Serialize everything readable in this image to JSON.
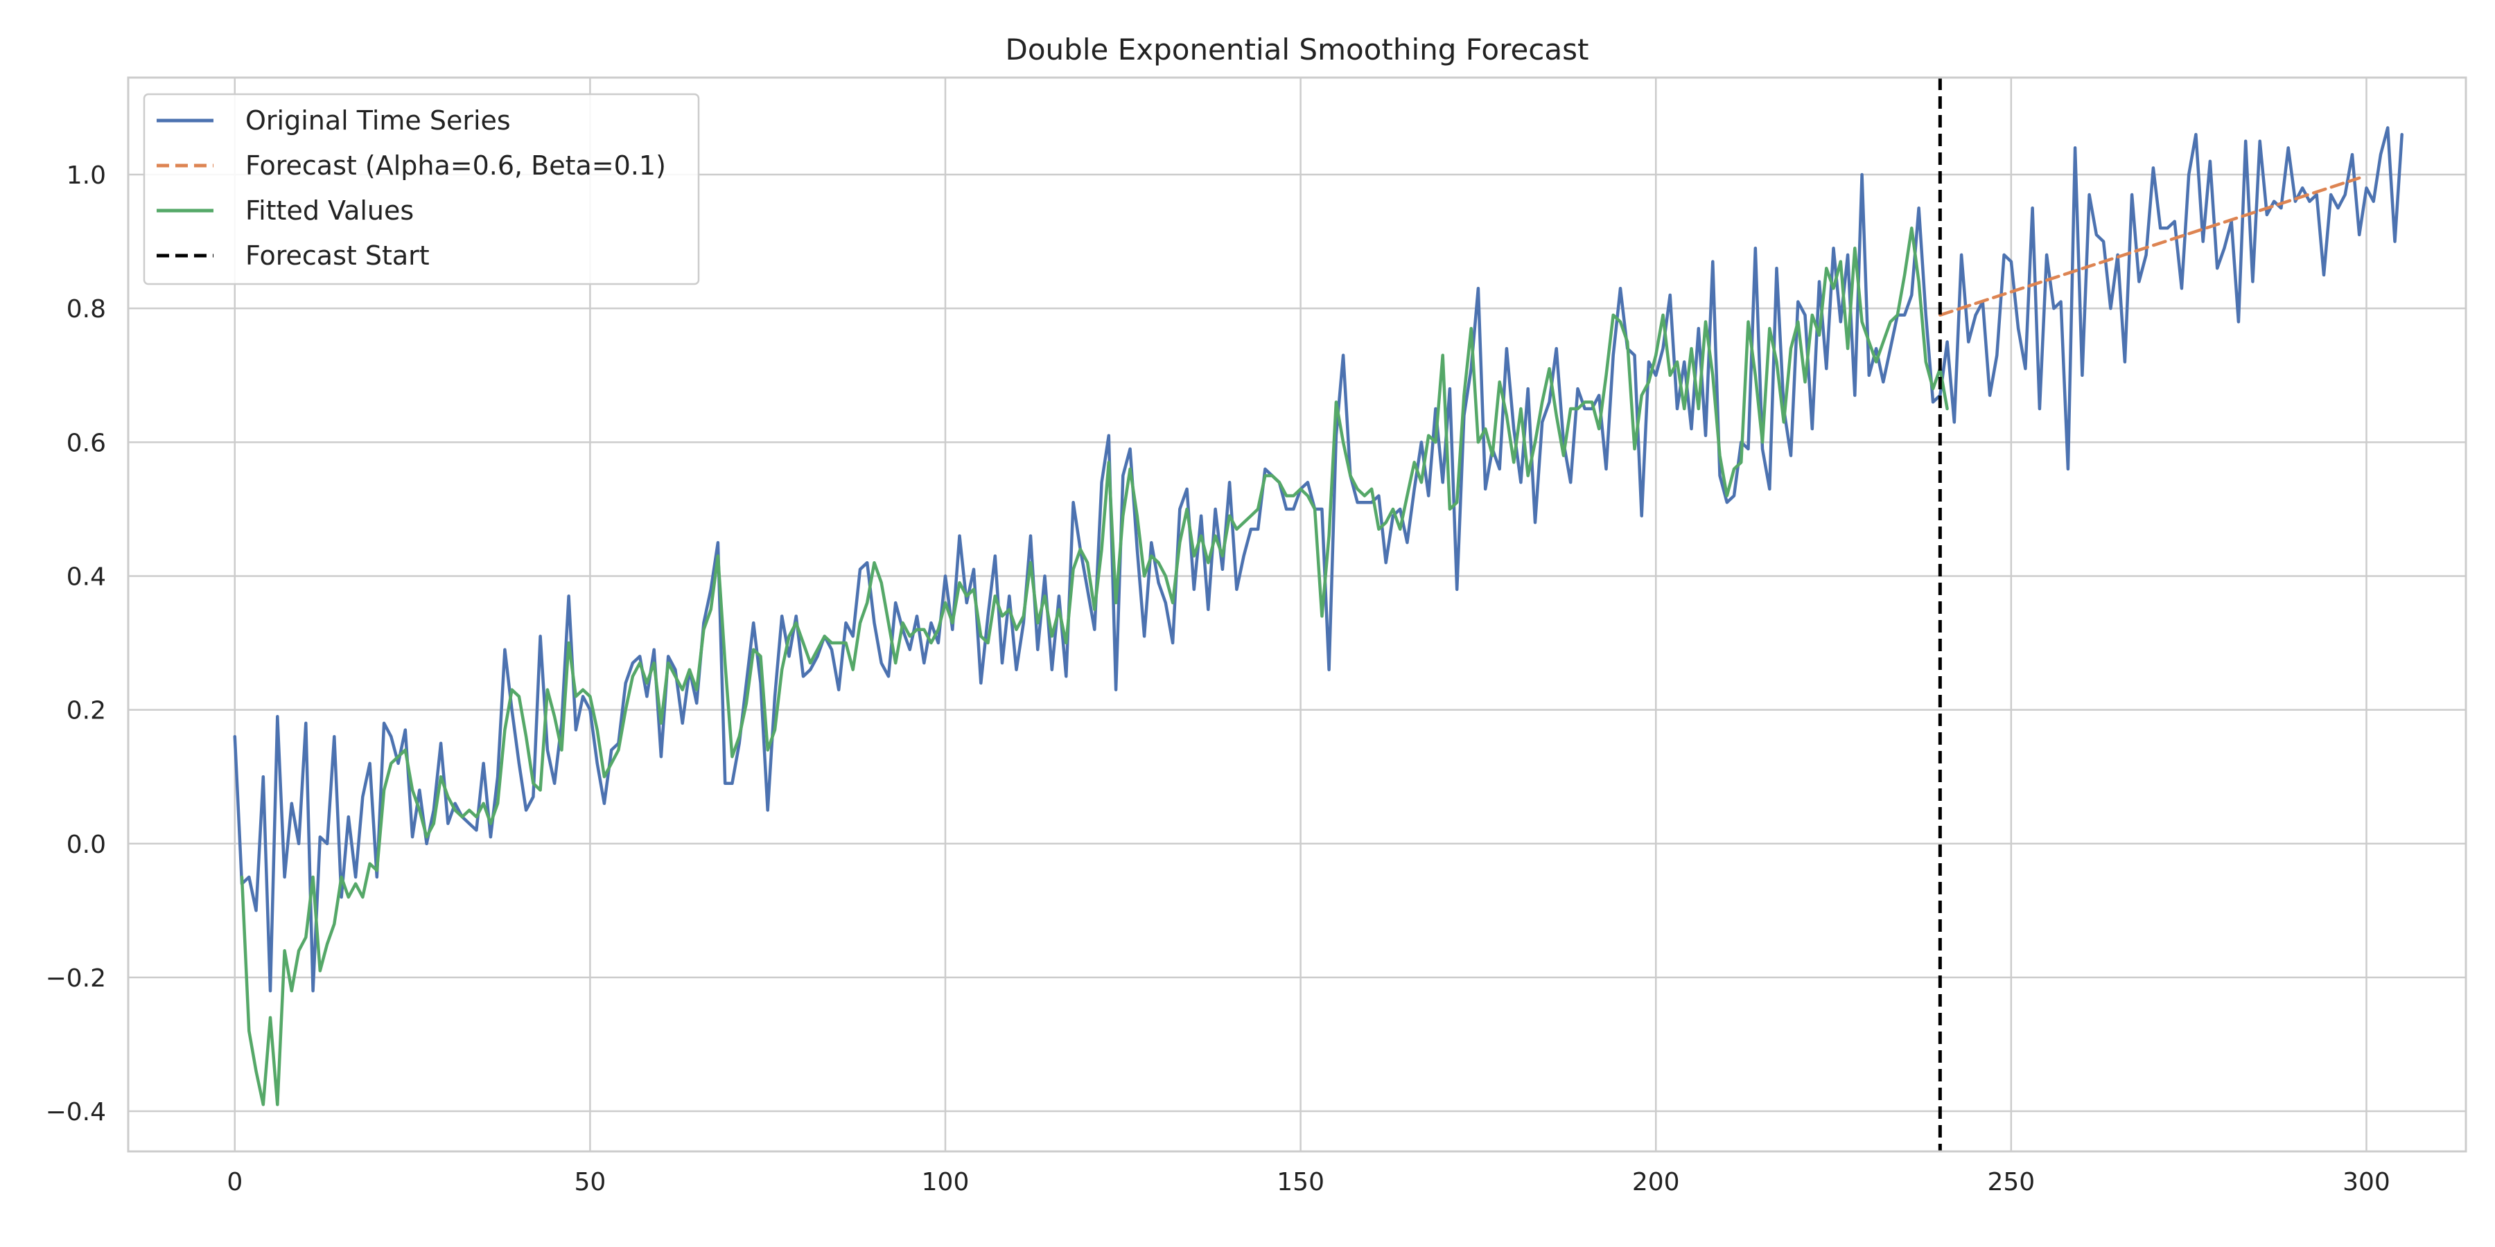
{
  "chart_data": {
    "type": "line",
    "title": "Double Exponential Smoothing Forecast",
    "xlabel": "",
    "ylabel": "",
    "xlim": [
      -15,
      314
    ],
    "ylim": [
      -0.46,
      1.145
    ],
    "grid": true,
    "legend_position": "top-left",
    "x_ticks": [
      0,
      50,
      100,
      150,
      200,
      250,
      300
    ],
    "y_ticks": [
      -0.4,
      -0.2,
      0.0,
      0.2,
      0.4,
      0.6,
      0.8,
      1.0
    ],
    "x_tick_labels": [
      "0",
      "50",
      "100",
      "150",
      "200",
      "250",
      "300"
    ],
    "y_tick_labels": [
      "−0.4",
      "−0.2",
      "0.0",
      "0.2",
      "0.4",
      "0.6",
      "0.8",
      "1.0"
    ],
    "forecast_start": 240,
    "series": [
      {
        "name": "Original Time Series",
        "color": "#4c72b0",
        "style": "solid",
        "x_start": 0,
        "values": [
          0.16,
          -0.06,
          -0.05,
          -0.1,
          0.1,
          -0.22,
          0.19,
          -0.05,
          0.06,
          0.0,
          0.18,
          -0.22,
          0.01,
          0.0,
          0.16,
          -0.08,
          0.04,
          -0.05,
          0.07,
          0.12,
          -0.05,
          0.18,
          0.16,
          0.12,
          0.17,
          0.01,
          0.08,
          0.0,
          0.05,
          0.15,
          0.03,
          0.06,
          0.04,
          0.03,
          0.02,
          0.12,
          0.01,
          0.1,
          0.29,
          0.2,
          0.12,
          0.05,
          0.07,
          0.31,
          0.14,
          0.09,
          0.18,
          0.37,
          0.17,
          0.22,
          0.2,
          0.12,
          0.06,
          0.14,
          0.15,
          0.24,
          0.27,
          0.28,
          0.22,
          0.29,
          0.13,
          0.28,
          0.26,
          0.18,
          0.26,
          0.21,
          0.33,
          0.38,
          0.45,
          0.09,
          0.09,
          0.15,
          0.24,
          0.33,
          0.24,
          0.05,
          0.22,
          0.34,
          0.28,
          0.34,
          0.25,
          0.26,
          0.28,
          0.31,
          0.29,
          0.23,
          0.33,
          0.31,
          0.41,
          0.42,
          0.33,
          0.27,
          0.25,
          0.36,
          0.32,
          0.29,
          0.34,
          0.27,
          0.33,
          0.3,
          0.4,
          0.32,
          0.46,
          0.36,
          0.41,
          0.24,
          0.34,
          0.43,
          0.27,
          0.37,
          0.26,
          0.33,
          0.46,
          0.29,
          0.4,
          0.26,
          0.37,
          0.25,
          0.51,
          0.44,
          0.38,
          0.32,
          0.54,
          0.61,
          0.23,
          0.55,
          0.59,
          0.44,
          0.31,
          0.45,
          0.39,
          0.36,
          0.3,
          0.5,
          0.53,
          0.38,
          0.49,
          0.35,
          0.5,
          0.41,
          0.54,
          0.38,
          0.43,
          0.47,
          0.47,
          0.56,
          0.55,
          0.54,
          0.5,
          0.5,
          0.53,
          0.54,
          0.5,
          0.5,
          0.26,
          0.61,
          0.73,
          0.55,
          0.51,
          0.51,
          0.51,
          0.52,
          0.42,
          0.49,
          0.5,
          0.45,
          0.53,
          0.6,
          0.52,
          0.65,
          0.54,
          0.68,
          0.38,
          0.64,
          0.71,
          0.83,
          0.53,
          0.59,
          0.56,
          0.74,
          0.62,
          0.54,
          0.68,
          0.48,
          0.63,
          0.66,
          0.74,
          0.6,
          0.54,
          0.68,
          0.65,
          0.65,
          0.67,
          0.56,
          0.73,
          0.83,
          0.74,
          0.73,
          0.49,
          0.72,
          0.7,
          0.74,
          0.82,
          0.65,
          0.72,
          0.62,
          0.77,
          0.61,
          0.87,
          0.55,
          0.51,
          0.52,
          0.6,
          0.59,
          0.89,
          0.59,
          0.53,
          0.86,
          0.65,
          0.58,
          0.81,
          0.79,
          0.62,
          0.84,
          0.71,
          0.89,
          0.78,
          0.88,
          0.67,
          1.0,
          0.7,
          0.74,
          0.69,
          0.74,
          0.79,
          0.79,
          0.82,
          0.95,
          0.79,
          0.66,
          0.67,
          0.75,
          0.63,
          0.88,
          0.75,
          0.79,
          0.81,
          0.67,
          0.73,
          0.88,
          0.87,
          0.77,
          0.71,
          0.95,
          0.65,
          0.88,
          0.8,
          0.81,
          0.56,
          1.04,
          0.7,
          0.97,
          0.91,
          0.9,
          0.8,
          0.88,
          0.72,
          0.97,
          0.84,
          0.88,
          1.01,
          0.92,
          0.92,
          0.93,
          0.83,
          1.0,
          1.06,
          0.9,
          1.02,
          0.86,
          0.89,
          0.93,
          0.78,
          1.05,
          0.84,
          1.05,
          0.94,
          0.96,
          0.95,
          1.04,
          0.96,
          0.98,
          0.96,
          0.97,
          0.85,
          0.97,
          0.95,
          0.97,
          1.03,
          0.91,
          0.98,
          0.96,
          1.03,
          1.07,
          0.9,
          1.06
        ]
      },
      {
        "name": "Forecast (Alpha=0.6, Beta=0.1)",
        "color": "#dd8452",
        "style": "dashed",
        "x": [
          240,
          299
        ],
        "values": [
          0.79,
          0.995
        ]
      },
      {
        "name": "Fitted Values",
        "color": "#55a868",
        "style": "solid",
        "x_start": 1,
        "values": [
          -0.05,
          -0.28,
          -0.34,
          -0.39,
          -0.26,
          -0.39,
          -0.16,
          -0.22,
          -0.16,
          -0.14,
          -0.05,
          -0.19,
          -0.15,
          -0.12,
          -0.05,
          -0.08,
          -0.06,
          -0.08,
          -0.03,
          -0.04,
          0.08,
          0.12,
          0.13,
          0.14,
          0.08,
          0.05,
          0.01,
          0.03,
          0.1,
          0.07,
          0.05,
          0.04,
          0.05,
          0.04,
          0.06,
          0.03,
          0.06,
          0.17,
          0.23,
          0.22,
          0.16,
          0.09,
          0.08,
          0.23,
          0.19,
          0.14,
          0.3,
          0.22,
          0.23,
          0.22,
          0.17,
          0.1,
          0.12,
          0.14,
          0.2,
          0.25,
          0.27,
          0.24,
          0.27,
          0.18,
          0.27,
          0.25,
          0.23,
          0.26,
          0.23,
          0.32,
          0.35,
          0.43,
          0.27,
          0.13,
          0.16,
          0.21,
          0.29,
          0.28,
          0.14,
          0.17,
          0.26,
          0.31,
          0.33,
          0.3,
          0.27,
          0.29,
          0.31,
          0.3,
          0.3,
          0.3,
          0.26,
          0.33,
          0.36,
          0.42,
          0.39,
          0.33,
          0.27,
          0.33,
          0.31,
          0.32,
          0.32,
          0.3,
          0.32,
          0.36,
          0.33,
          0.39,
          0.37,
          0.38,
          0.31,
          0.3,
          0.37,
          0.34,
          0.35,
          0.32,
          0.34,
          0.42,
          0.33,
          0.37,
          0.31,
          0.35,
          0.3,
          0.41,
          0.44,
          0.42,
          0.35,
          0.44,
          0.57,
          0.36,
          0.49,
          0.56,
          0.49,
          0.4,
          0.43,
          0.42,
          0.4,
          0.36,
          0.45,
          0.5,
          0.43,
          0.46,
          0.42,
          0.46,
          0.43,
          0.49,
          0.47,
          0.48,
          0.49,
          0.5,
          0.55,
          0.55,
          0.54,
          0.52,
          0.52,
          0.53,
          0.52,
          0.5,
          0.34,
          0.46,
          0.66,
          0.6,
          0.55,
          0.53,
          0.52,
          0.53,
          0.47,
          0.48,
          0.5,
          0.47,
          0.52,
          0.57,
          0.54,
          0.61,
          0.6,
          0.73,
          0.5,
          0.51,
          0.67,
          0.77,
          0.6,
          0.62,
          0.58,
          0.69,
          0.64,
          0.57,
          0.65,
          0.55,
          0.6,
          0.66,
          0.71,
          0.64,
          0.58,
          0.65,
          0.65,
          0.66,
          0.66,
          0.62,
          0.7,
          0.79,
          0.78,
          0.75,
          0.59,
          0.67,
          0.69,
          0.73,
          0.79,
          0.7,
          0.72,
          0.65,
          0.74,
          0.65,
          0.78,
          0.7,
          0.58,
          0.52,
          0.56,
          0.57,
          0.78,
          0.7,
          0.6,
          0.77,
          0.72,
          0.63,
          0.74,
          0.78,
          0.69,
          0.79,
          0.76,
          0.86,
          0.83,
          0.87,
          0.74,
          0.89,
          0.78,
          0.75,
          0.72,
          0.75,
          0.78,
          0.79,
          0.85,
          0.92,
          0.84,
          0.72,
          0.68,
          0.71,
          0.65
        ]
      },
      {
        "name": "Forecast Start",
        "color": "#000000",
        "style": "dashed",
        "x": 240
      }
    ]
  }
}
